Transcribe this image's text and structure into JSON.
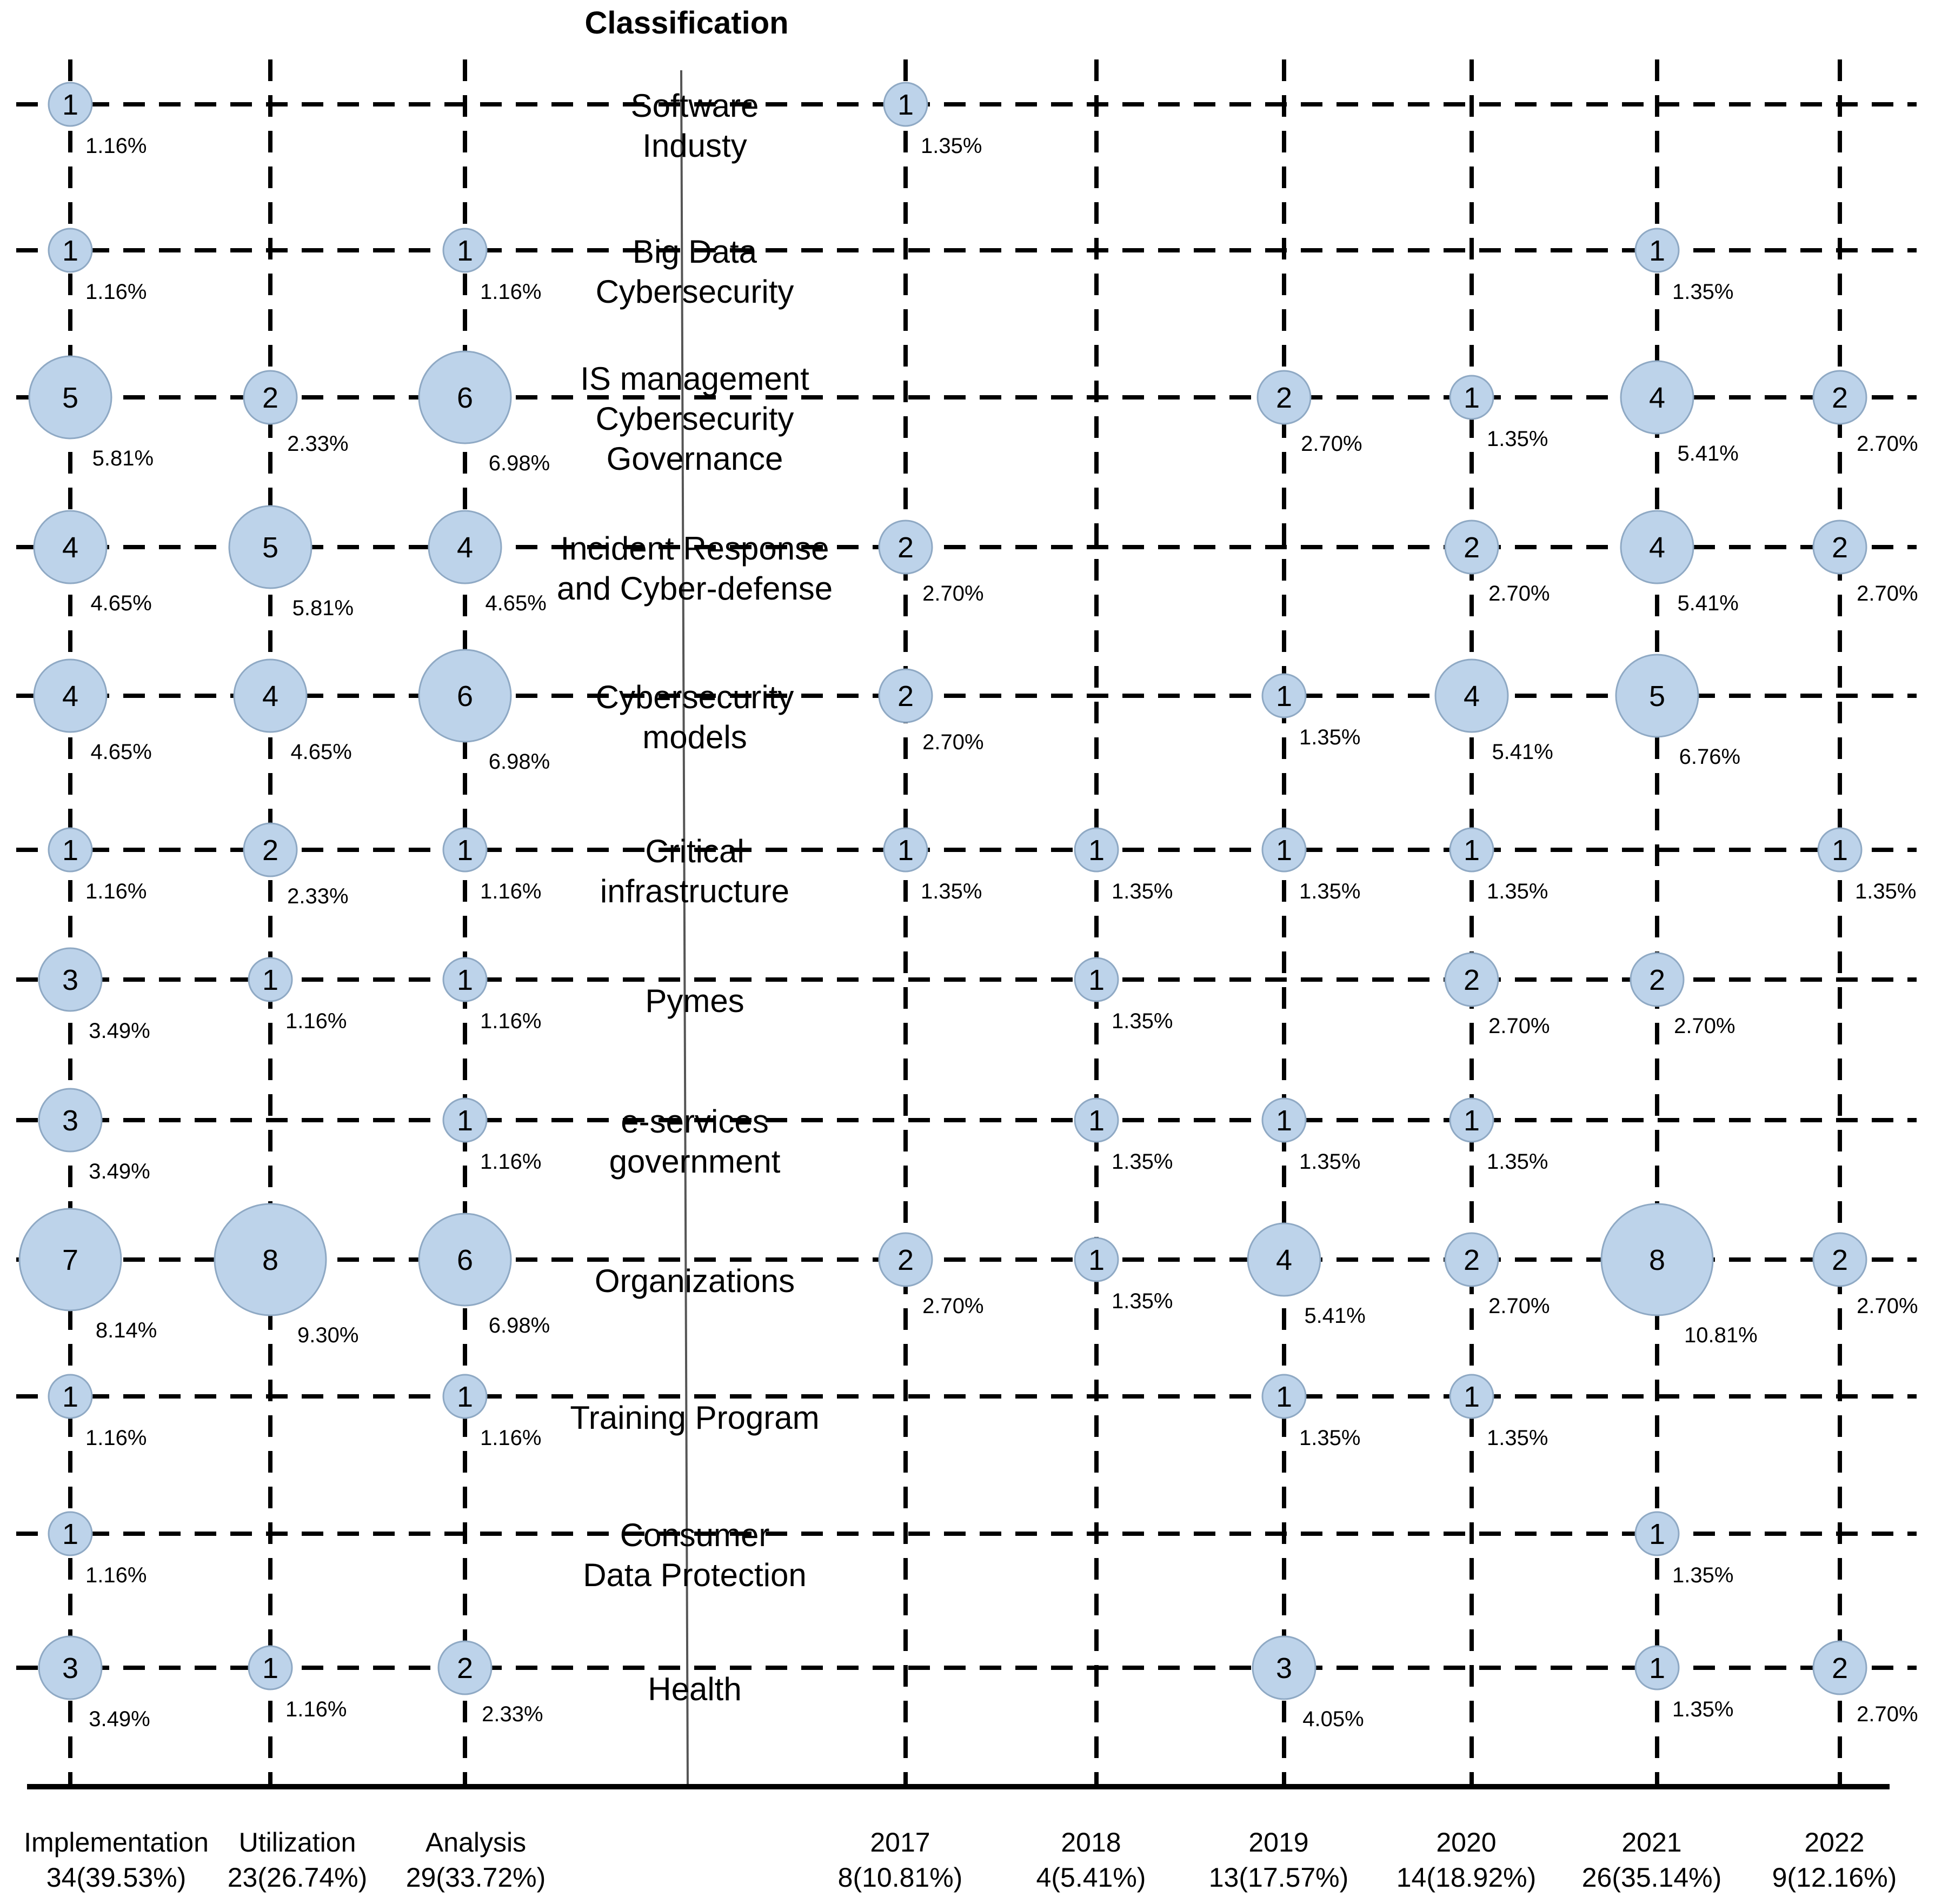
{
  "chart_data": {
    "type": "scatter",
    "title": "Classification",
    "categories": [
      [
        "Software",
        "Industy"
      ],
      [
        "Big Data",
        "Cybersecurity"
      ],
      [
        "IS management",
        "Cybersecurity",
        "Governance"
      ],
      [
        "Incident  Response",
        "and Cyber-defense"
      ],
      [
        "Cybersecurity",
        "models"
      ],
      [
        "Critical",
        "infrastructure"
      ],
      [
        "Pymes"
      ],
      [
        "e-services",
        "government"
      ],
      [
        "Organizations"
      ],
      [
        "Training  Program"
      ],
      [
        "Consumer",
        "Data Protection"
      ],
      [
        "Health"
      ]
    ],
    "left_columns": [
      {
        "name": "Implementation",
        "total": "34(39.53%)"
      },
      {
        "name": "Utilization",
        "total": "23(26.74%)"
      },
      {
        "name": "Analysis",
        "total": "29(33.72%)"
      }
    ],
    "right_columns": [
      {
        "name": "2017",
        "total": "8(10.81%)"
      },
      {
        "name": "2018",
        "total": "4(5.41%)"
      },
      {
        "name": "2019",
        "total": "13(17.57%)"
      },
      {
        "name": "2020",
        "total": "14(18.92%)"
      },
      {
        "name": "2021",
        "total": "26(35.14%)"
      },
      {
        "name": "2022",
        "total": "9(12.16%)"
      }
    ],
    "points": [
      {
        "side": "left",
        "col": 0,
        "row": 0,
        "value": 1,
        "pct": "1.16%"
      },
      {
        "side": "left",
        "col": 0,
        "row": 1,
        "value": 1,
        "pct": "1.16%"
      },
      {
        "side": "left",
        "col": 0,
        "row": 2,
        "value": 5,
        "pct": "5.81%"
      },
      {
        "side": "left",
        "col": 0,
        "row": 3,
        "value": 4,
        "pct": "4.65%"
      },
      {
        "side": "left",
        "col": 0,
        "row": 4,
        "value": 4,
        "pct": "4.65%"
      },
      {
        "side": "left",
        "col": 0,
        "row": 5,
        "value": 1,
        "pct": "1.16%"
      },
      {
        "side": "left",
        "col": 0,
        "row": 6,
        "value": 3,
        "pct": "3.49%"
      },
      {
        "side": "left",
        "col": 0,
        "row": 7,
        "value": 3,
        "pct": "3.49%"
      },
      {
        "side": "left",
        "col": 0,
        "row": 8,
        "value": 7,
        "pct": "8.14%"
      },
      {
        "side": "left",
        "col": 0,
        "row": 9,
        "value": 1,
        "pct": "1.16%"
      },
      {
        "side": "left",
        "col": 0,
        "row": 10,
        "value": 1,
        "pct": "1.16%"
      },
      {
        "side": "left",
        "col": 0,
        "row": 11,
        "value": 3,
        "pct": "3.49%"
      },
      {
        "side": "left",
        "col": 1,
        "row": 2,
        "value": 2,
        "pct": "2.33%"
      },
      {
        "side": "left",
        "col": 1,
        "row": 3,
        "value": 5,
        "pct": "5.81%"
      },
      {
        "side": "left",
        "col": 1,
        "row": 4,
        "value": 4,
        "pct": "4.65%"
      },
      {
        "side": "left",
        "col": 1,
        "row": 5,
        "value": 2,
        "pct": "2.33%"
      },
      {
        "side": "left",
        "col": 1,
        "row": 6,
        "value": 1,
        "pct": "1.16%"
      },
      {
        "side": "left",
        "col": 1,
        "row": 8,
        "value": 8,
        "pct": "9.30%"
      },
      {
        "side": "left",
        "col": 1,
        "row": 11,
        "value": 1,
        "pct": "1.16%"
      },
      {
        "side": "left",
        "col": 2,
        "row": 1,
        "value": 1,
        "pct": "1.16%"
      },
      {
        "side": "left",
        "col": 2,
        "row": 2,
        "value": 6,
        "pct": "6.98%"
      },
      {
        "side": "left",
        "col": 2,
        "row": 3,
        "value": 4,
        "pct": "4.65%"
      },
      {
        "side": "left",
        "col": 2,
        "row": 4,
        "value": 6,
        "pct": "6.98%"
      },
      {
        "side": "left",
        "col": 2,
        "row": 5,
        "value": 1,
        "pct": "1.16%"
      },
      {
        "side": "left",
        "col": 2,
        "row": 6,
        "value": 1,
        "pct": "1.16%"
      },
      {
        "side": "left",
        "col": 2,
        "row": 7,
        "value": 1,
        "pct": "1.16%"
      },
      {
        "side": "left",
        "col": 2,
        "row": 8,
        "value": 6,
        "pct": "6.98%"
      },
      {
        "side": "left",
        "col": 2,
        "row": 9,
        "value": 1,
        "pct": "1.16%"
      },
      {
        "side": "left",
        "col": 2,
        "row": 11,
        "value": 2,
        "pct": "2.33%"
      },
      {
        "side": "right",
        "col": 0,
        "row": 0,
        "value": 1,
        "pct": "1.35%"
      },
      {
        "side": "right",
        "col": 0,
        "row": 3,
        "value": 2,
        "pct": "2.70%"
      },
      {
        "side": "right",
        "col": 0,
        "row": 4,
        "value": 2,
        "pct": "2.70%"
      },
      {
        "side": "right",
        "col": 0,
        "row": 5,
        "value": 1,
        "pct": "1.35%"
      },
      {
        "side": "right",
        "col": 0,
        "row": 8,
        "value": 2,
        "pct": "2.70%"
      },
      {
        "side": "right",
        "col": 1,
        "row": 5,
        "value": 1,
        "pct": "1.35%"
      },
      {
        "side": "right",
        "col": 1,
        "row": 6,
        "value": 1,
        "pct": "1.35%"
      },
      {
        "side": "right",
        "col": 1,
        "row": 7,
        "value": 1,
        "pct": "1.35%"
      },
      {
        "side": "right",
        "col": 1,
        "row": 8,
        "value": 1,
        "pct": "1.35%"
      },
      {
        "side": "right",
        "col": 2,
        "row": 2,
        "value": 2,
        "pct": "2.70%"
      },
      {
        "side": "right",
        "col": 2,
        "row": 4,
        "value": 1,
        "pct": "1.35%"
      },
      {
        "side": "right",
        "col": 2,
        "row": 5,
        "value": 1,
        "pct": "1.35%"
      },
      {
        "side": "right",
        "col": 2,
        "row": 7,
        "value": 1,
        "pct": "1.35%"
      },
      {
        "side": "right",
        "col": 2,
        "row": 8,
        "value": 4,
        "pct": "5.41%"
      },
      {
        "side": "right",
        "col": 2,
        "row": 9,
        "value": 1,
        "pct": "1.35%"
      },
      {
        "side": "right",
        "col": 2,
        "row": 11,
        "value": 3,
        "pct": "4.05%"
      },
      {
        "side": "right",
        "col": 3,
        "row": 2,
        "value": 1,
        "pct": "1.35%"
      },
      {
        "side": "right",
        "col": 3,
        "row": 3,
        "value": 2,
        "pct": "2.70%"
      },
      {
        "side": "right",
        "col": 3,
        "row": 4,
        "value": 4,
        "pct": "5.41%"
      },
      {
        "side": "right",
        "col": 3,
        "row": 5,
        "value": 1,
        "pct": "1.35%"
      },
      {
        "side": "right",
        "col": 3,
        "row": 6,
        "value": 2,
        "pct": "2.70%"
      },
      {
        "side": "right",
        "col": 3,
        "row": 7,
        "value": 1,
        "pct": "1.35%"
      },
      {
        "side": "right",
        "col": 3,
        "row": 8,
        "value": 2,
        "pct": "2.70%"
      },
      {
        "side": "right",
        "col": 3,
        "row": 9,
        "value": 1,
        "pct": "1.35%"
      },
      {
        "side": "right",
        "col": 4,
        "row": 1,
        "value": 1,
        "pct": "1.35%"
      },
      {
        "side": "right",
        "col": 4,
        "row": 2,
        "value": 4,
        "pct": "5.41%"
      },
      {
        "side": "right",
        "col": 4,
        "row": 3,
        "value": 4,
        "pct": "5.41%"
      },
      {
        "side": "right",
        "col": 4,
        "row": 4,
        "value": 5,
        "pct": "6.76%"
      },
      {
        "side": "right",
        "col": 4,
        "row": 6,
        "value": 2,
        "pct": "2.70%"
      },
      {
        "side": "right",
        "col": 4,
        "row": 8,
        "value": 8,
        "pct": "10.81%"
      },
      {
        "side": "right",
        "col": 4,
        "row": 10,
        "value": 1,
        "pct": "1.35%"
      },
      {
        "side": "right",
        "col": 4,
        "row": 11,
        "value": 1,
        "pct": "1.35%"
      },
      {
        "side": "right",
        "col": 5,
        "row": 2,
        "value": 2,
        "pct": "2.70%"
      },
      {
        "side": "right",
        "col": 5,
        "row": 3,
        "value": 2,
        "pct": "2.70%"
      },
      {
        "side": "right",
        "col": 5,
        "row": 5,
        "value": 1,
        "pct": "1.35%"
      },
      {
        "side": "right",
        "col": 5,
        "row": 8,
        "value": 2,
        "pct": "2.70%"
      },
      {
        "side": "right",
        "col": 5,
        "row": 11,
        "value": 2,
        "pct": "2.70%"
      }
    ]
  }
}
